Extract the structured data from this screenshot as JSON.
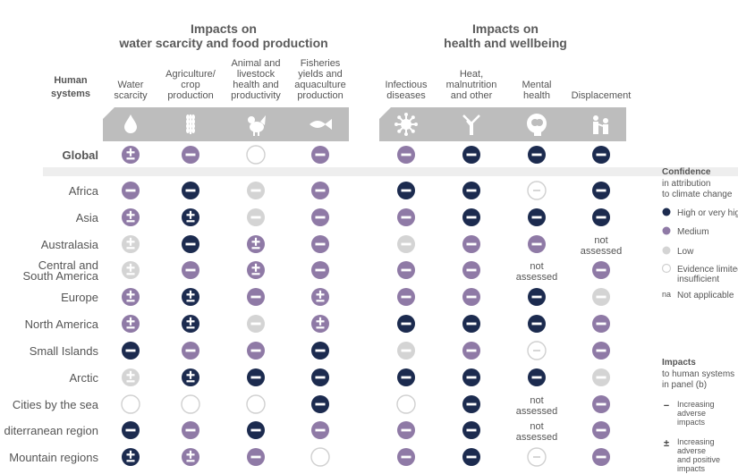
{
  "chart_data": {
    "type": "table",
    "group_titles": [
      [
        "Impacts on",
        "water scarcity and food production"
      ],
      [
        "Impacts on",
        "health and wellbeing"
      ]
    ],
    "row_header": [
      "Human",
      "systems"
    ],
    "columns": [
      {
        "lines": [
          "Water",
          "scarcity"
        ],
        "icon": "water-drop-icon"
      },
      {
        "lines": [
          "Agriculture/",
          "crop",
          "production"
        ],
        "icon": "wheat-icon"
      },
      {
        "lines": [
          "Animal and",
          "livestock",
          "health and",
          "productivity"
        ],
        "icon": "chicken-icon"
      },
      {
        "lines": [
          "Fisheries",
          "yields and",
          "aquaculture",
          "production"
        ],
        "icon": "fish-icon"
      },
      {
        "lines": [
          "Infectious",
          "diseases"
        ],
        "icon": "virus-icon"
      },
      {
        "lines": [
          "Heat,",
          "malnutrition",
          "and other"
        ],
        "icon": "tree-icon"
      },
      {
        "lines": [
          "Mental",
          "health"
        ],
        "icon": "brain-head-icon"
      },
      {
        "lines": [
          "Displacement"
        ],
        "icon": "people-icon"
      }
    ],
    "rows": [
      {
        "label": [
          "Global"
        ],
        "cells": [
          "M±",
          "M-",
          "E",
          "M-",
          "M-",
          "H-",
          "H-",
          "H-"
        ]
      },
      {
        "label": [
          "Africa"
        ],
        "cells": [
          "M-",
          "H-",
          "L-",
          "M-",
          "H-",
          "H-",
          "E-",
          "H-"
        ]
      },
      {
        "label": [
          "Asia"
        ],
        "cells": [
          "M±",
          "H±",
          "L-",
          "M-",
          "M-",
          "H-",
          "H-",
          "H-"
        ]
      },
      {
        "label": [
          "Australasia"
        ],
        "cells": [
          "L±",
          "H-",
          "M±",
          "M-",
          "L-",
          "M-",
          "M-",
          "NA"
        ]
      },
      {
        "label": [
          "Central and",
          "South America"
        ],
        "cells": [
          "L±",
          "M-",
          "M±",
          "M-",
          "M-",
          "M-",
          "NA",
          "M-"
        ]
      },
      {
        "label": [
          "Europe"
        ],
        "cells": [
          "M±",
          "H±",
          "M-",
          "M±",
          "M-",
          "M-",
          "H-",
          "L-"
        ]
      },
      {
        "label": [
          "North America"
        ],
        "cells": [
          "M±",
          "H±",
          "L-",
          "M±",
          "H-",
          "H-",
          "H-",
          "M-"
        ]
      },
      {
        "label": [
          "Small Islands"
        ],
        "cells": [
          "H-",
          "M-",
          "M-",
          "H-",
          "L-",
          "M-",
          "E-",
          "M-"
        ]
      },
      {
        "label": [
          "Arctic"
        ],
        "cells": [
          "L±",
          "H±",
          "H-",
          "H-",
          "H-",
          "H-",
          "H-",
          "L-"
        ]
      },
      {
        "label": [
          "Cities by the sea"
        ],
        "cells": [
          "E",
          "E",
          "E",
          "H-",
          "E",
          "H-",
          "NA",
          "M-"
        ]
      },
      {
        "label": [
          "diterranean region"
        ],
        "cells": [
          "H-",
          "M-",
          "H-",
          "M-",
          "M-",
          "H-",
          "NA",
          "M-"
        ]
      },
      {
        "label": [
          "Mountain regions"
        ],
        "cells": [
          "H±",
          "M±",
          "M-",
          "E",
          "M-",
          "H-",
          "E-",
          "M-"
        ]
      }
    ],
    "not_assessed_lines": [
      "not",
      "assessed"
    ],
    "legend": {
      "confidence_title": "Confidence",
      "confidence_sub": [
        "in attribution",
        "to climate change"
      ],
      "confidence_items": [
        {
          "level": "H",
          "lines": [
            "High or very high"
          ]
        },
        {
          "level": "M",
          "lines": [
            "Medium"
          ]
        },
        {
          "level": "L",
          "lines": [
            "Low"
          ]
        },
        {
          "level": "E",
          "lines": [
            "Evidence limited,",
            "insufficient"
          ]
        },
        {
          "level": "na",
          "key": "na",
          "lines": [
            "Not applicable"
          ]
        }
      ],
      "impacts_title": "Impacts",
      "impacts_sub": [
        "to human systems",
        "in panel (b)"
      ],
      "impacts_items": [
        {
          "symbol": "−",
          "lines": [
            "Increasing",
            "adverse",
            "impacts"
          ]
        },
        {
          "symbol": "±",
          "lines": [
            "Increasing",
            "adverse",
            "and positive",
            "impacts"
          ]
        }
      ]
    },
    "colors": {
      "high": "#1c2b4f",
      "medium": "#8f7aa6",
      "low": "#d4d4d4",
      "limited_border": "#d0d0d0",
      "text": "#555555",
      "icon_band": "#bdbdbd"
    }
  }
}
